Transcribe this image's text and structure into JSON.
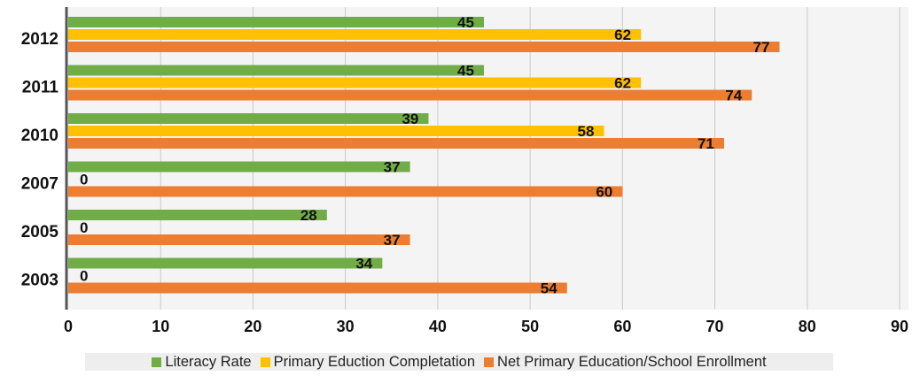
{
  "chart_data": {
    "type": "bar",
    "orientation": "horizontal",
    "title": "",
    "xlabel": "",
    "ylabel": "",
    "categories": [
      "2012",
      "2011",
      "2010",
      "2007",
      "2005",
      "2003"
    ],
    "series": [
      {
        "name": "Literacy Rate",
        "color": "#70ad47",
        "values": [
          45,
          45,
          39,
          37,
          28,
          34
        ]
      },
      {
        "name": "Primary Eduction Completation",
        "color": "#ffc000",
        "values": [
          62,
          62,
          58,
          0,
          0,
          0
        ]
      },
      {
        "name": "Net Primary Education/School Enrollment",
        "color": "#ed7d31",
        "values": [
          77,
          74,
          71,
          60,
          37,
          54
        ]
      }
    ],
    "xlim": [
      0,
      90
    ],
    "xticks": [
      "0",
      "10",
      "20",
      "30",
      "40",
      "50",
      "60",
      "70",
      "80",
      "90"
    ],
    "grid": true,
    "legend_position": "bottom",
    "data_labels": true
  }
}
